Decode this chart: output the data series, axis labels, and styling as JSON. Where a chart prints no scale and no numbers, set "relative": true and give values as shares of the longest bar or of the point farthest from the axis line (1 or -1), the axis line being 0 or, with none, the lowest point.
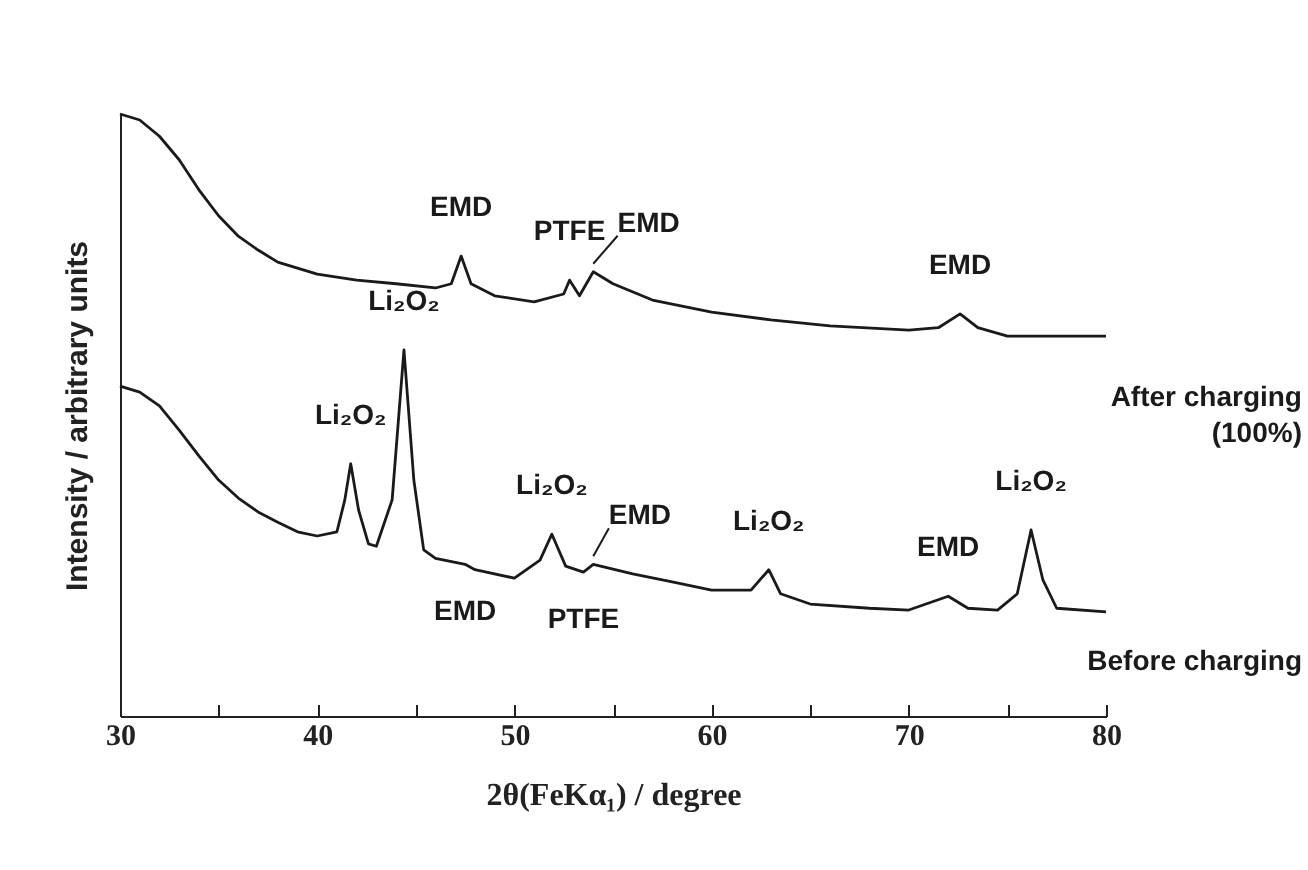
{
  "chart_data": {
    "type": "line",
    "relative": true,
    "xlabel": "2θ(FeKα₁) / degree",
    "ylabel": "Intensity / arbitrary units",
    "xlim": [
      30,
      80
    ],
    "xticks": [
      30,
      {
        "value": 35,
        "label": null
      },
      40,
      {
        "value": 45,
        "label": null
      },
      50,
      {
        "value": 55,
        "label": null
      },
      60,
      {
        "value": 65,
        "label": null
      },
      70,
      {
        "value": 75,
        "label": null
      },
      80
    ],
    "series": [
      {
        "name": "After charging (100%)",
        "color": "#1a1a1a",
        "x": [
          30,
          31,
          32,
          33,
          34,
          35,
          36,
          37,
          38,
          40,
          42,
          44,
          46,
          46.8,
          47.3,
          47.8,
          49,
          51,
          52.5,
          52.8,
          53.3,
          54,
          55,
          57,
          60,
          63,
          66,
          70,
          71.5,
          72.6,
          73.5,
          75,
          78,
          80
        ],
        "values": [
          1.0,
          0.99,
          0.963,
          0.924,
          0.874,
          0.831,
          0.797,
          0.774,
          0.754,
          0.734,
          0.724,
          0.718,
          0.711,
          0.718,
          0.764,
          0.718,
          0.698,
          0.688,
          0.701,
          0.724,
          0.698,
          0.738,
          0.718,
          0.691,
          0.671,
          0.658,
          0.648,
          0.641,
          0.645,
          0.668,
          0.645,
          0.631,
          0.631,
          0.631
        ]
      },
      {
        "name": "Before charging",
        "color": "#1a1a1a",
        "x": [
          30,
          31,
          32,
          33,
          34,
          35,
          36,
          37,
          38,
          39,
          40,
          41,
          41.4,
          41.7,
          42.1,
          42.6,
          43,
          43.8,
          44.4,
          44.9,
          45.4,
          46,
          47.5,
          48,
          50,
          51.3,
          51.9,
          52.6,
          53.5,
          54,
          56,
          58,
          60,
          62,
          62.9,
          63.5,
          65,
          68,
          70,
          72,
          73,
          74.5,
          75.5,
          76.2,
          76.8,
          77.5,
          80
        ],
        "values": [
          0.548,
          0.538,
          0.515,
          0.475,
          0.432,
          0.392,
          0.362,
          0.339,
          0.322,
          0.306,
          0.299,
          0.306,
          0.359,
          0.419,
          0.342,
          0.286,
          0.282,
          0.359,
          0.608,
          0.392,
          0.276,
          0.262,
          0.252,
          0.243,
          0.229,
          0.259,
          0.302,
          0.249,
          0.239,
          0.252,
          0.236,
          0.223,
          0.209,
          0.209,
          0.243,
          0.203,
          0.186,
          0.179,
          0.176,
          0.199,
          0.179,
          0.176,
          0.203,
          0.309,
          0.226,
          0.179,
          0.173
        ]
      }
    ],
    "annotations": [
      {
        "text": "EMD",
        "x": 47.3,
        "y": 0.764
      },
      {
        "text": "PTFE",
        "x": 52.8,
        "y": 0.724
      },
      {
        "text": "EMD",
        "x": 54,
        "y": 0.738
      },
      {
        "text": "EMD",
        "x": 72.6,
        "y": 0.668
      },
      {
        "text": "Li₂O₂",
        "x": 41.7,
        "y": 0.419
      },
      {
        "text": "Li₂O₂",
        "x": 44.4,
        "y": 0.608
      },
      {
        "text": "Li₂O₂",
        "x": 51.9,
        "y": 0.302
      },
      {
        "text": "EMD",
        "x": 54,
        "y": 0.252
      },
      {
        "text": "Li₂O₂",
        "x": 62.9,
        "y": 0.243
      },
      {
        "text": "EMD",
        "x": 72,
        "y": 0.199
      },
      {
        "text": "Li₂O₂",
        "x": 76.2,
        "y": 0.309
      },
      {
        "text": "EMD",
        "x": 47.5,
        "y": 0.252
      },
      {
        "text": "PTFE",
        "x": 53.5,
        "y": 0.239
      }
    ]
  }
}
